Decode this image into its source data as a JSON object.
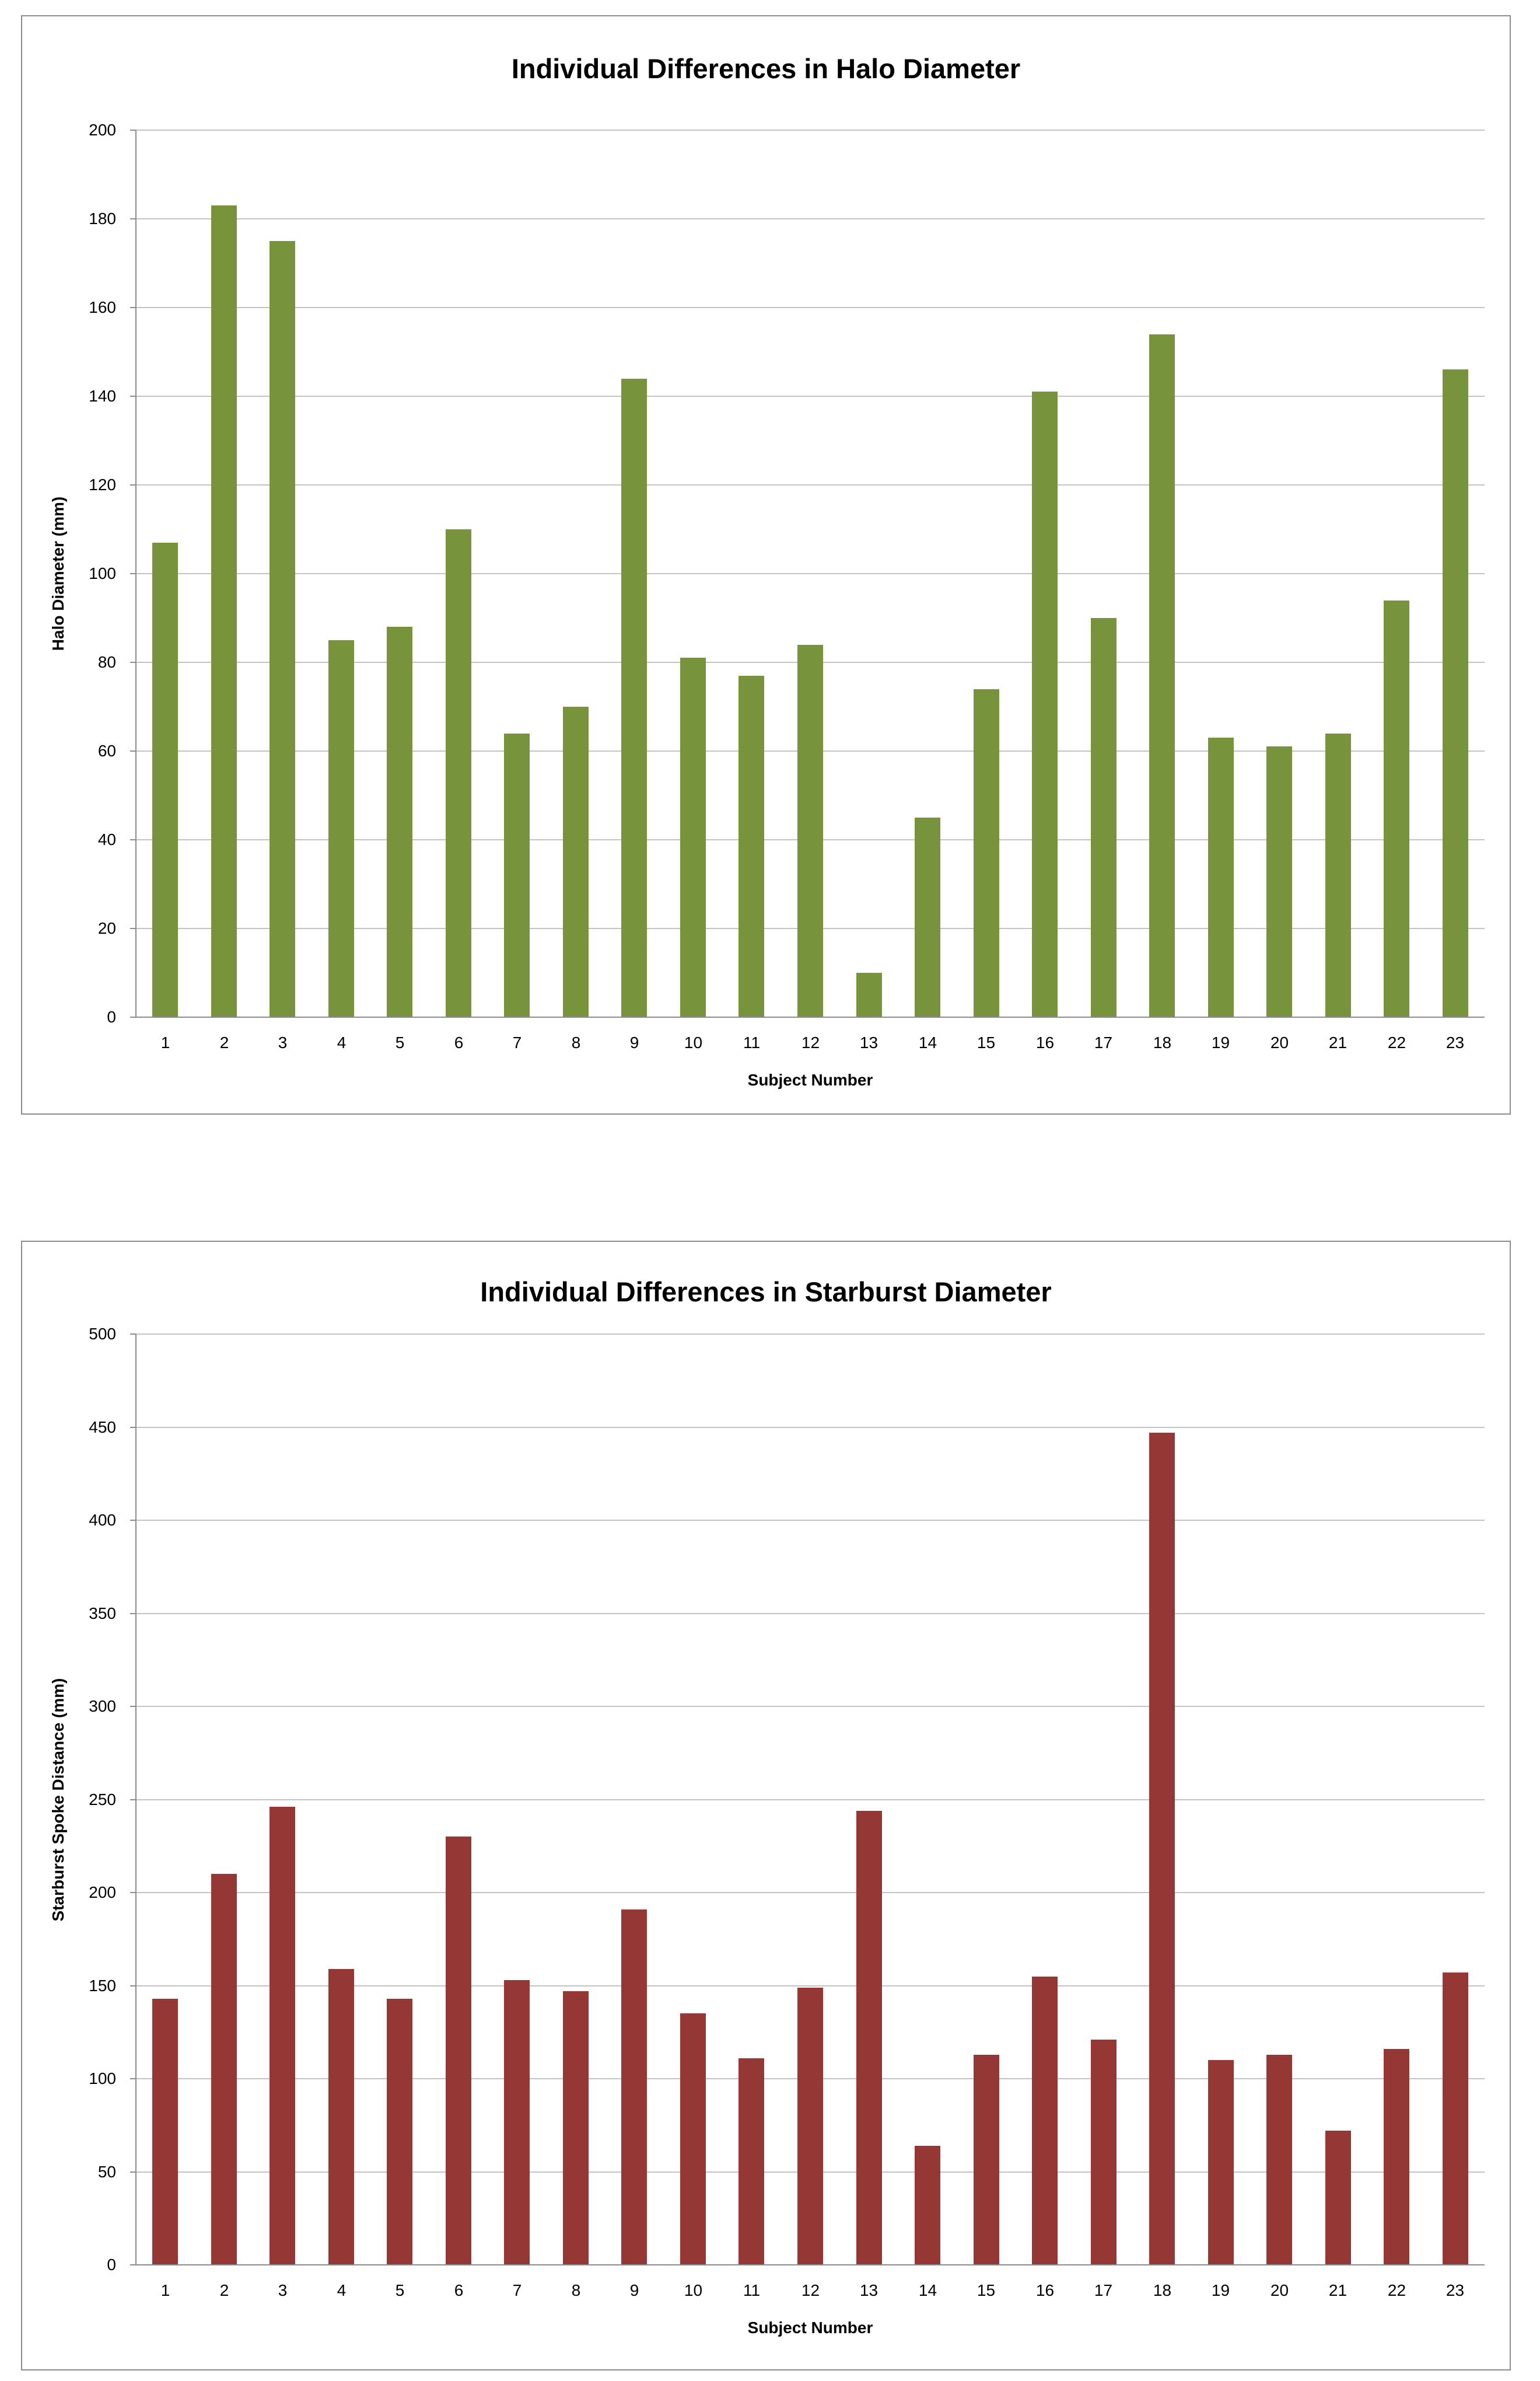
{
  "chart_data": [
    {
      "type": "bar",
      "title": "Individual Differences in Halo Diameter",
      "xlabel": "Subject Number",
      "ylabel": "Halo Diameter (mm)",
      "ylim": [
        0,
        200
      ],
      "ytick_step": 20,
      "bar_color": "#77933C",
      "grid": true,
      "legend": "none",
      "categories": [
        "1",
        "2",
        "3",
        "4",
        "5",
        "6",
        "7",
        "8",
        "9",
        "10",
        "11",
        "12",
        "13",
        "14",
        "15",
        "16",
        "17",
        "18",
        "19",
        "20",
        "21",
        "22",
        "23"
      ],
      "values": [
        107,
        183,
        175,
        85,
        88,
        110,
        64,
        70,
        144,
        81,
        77,
        84,
        10,
        45,
        74,
        141,
        90,
        154,
        63,
        61,
        64,
        94,
        146
      ]
    },
    {
      "type": "bar",
      "title": "Individual Differences in Starburst Diameter",
      "xlabel": "Subject Number",
      "ylabel": "Starburst Spoke Distance (mm)",
      "ylim": [
        0,
        500
      ],
      "ytick_step": 50,
      "bar_color": "#953735",
      "grid": true,
      "legend": "none",
      "categories": [
        "1",
        "2",
        "3",
        "4",
        "5",
        "6",
        "7",
        "8",
        "9",
        "10",
        "11",
        "12",
        "13",
        "14",
        "15",
        "16",
        "17",
        "18",
        "19",
        "20",
        "21",
        "22",
        "23"
      ],
      "values": [
        143,
        210,
        246,
        159,
        143,
        230,
        153,
        147,
        191,
        135,
        111,
        149,
        244,
        64,
        113,
        155,
        121,
        447,
        110,
        113,
        72,
        116,
        157
      ]
    }
  ]
}
